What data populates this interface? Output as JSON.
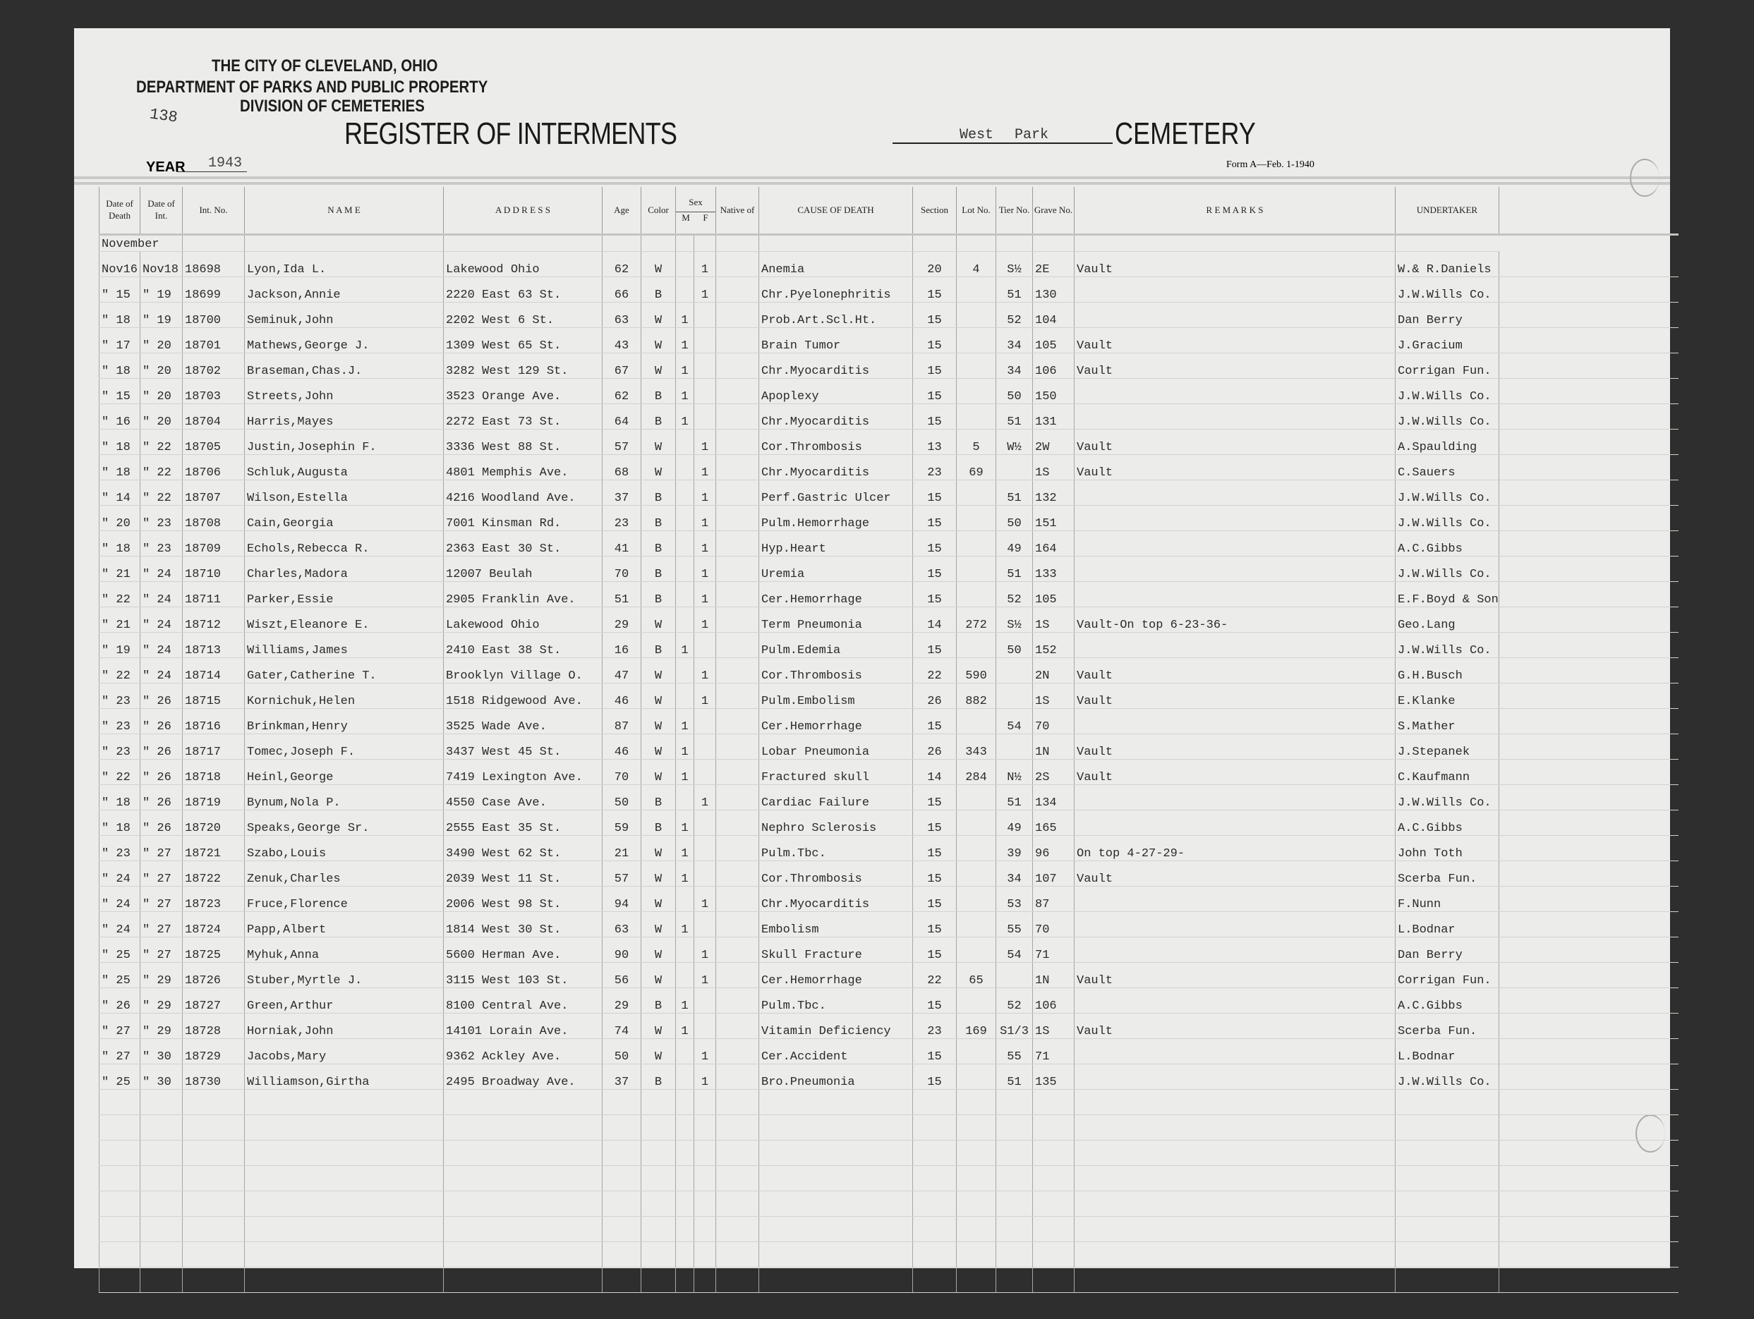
{
  "header": {
    "line1": "THE CITY OF CLEVELAND, OHIO",
    "line2": "DEPARTMENT OF PARKS AND PUBLIC PROPERTY",
    "line3": "DIVISION OF CEMETERIES",
    "page_number": "138",
    "register_title": "REGISTER OF INTERMENTS",
    "cemetery_name_1": "West",
    "cemetery_name_2": "Park",
    "cemetery_label": "CEMETERY",
    "year_label": "YEAR",
    "year": "1943",
    "form": "Form A—Feb. 1-1940"
  },
  "columns": [
    "Date of Death",
    "Date of Int.",
    "Int. No.",
    "N A M E",
    "A D D R E S S",
    "Age",
    "Color",
    "Sex",
    "Native of",
    "CAUSE OF DEATH",
    "Section",
    "Lot No.",
    "Tier No.",
    "Grave No.",
    "R E M A R K S",
    "UNDERTAKER",
    ""
  ],
  "sex_sub": [
    "M",
    "F"
  ],
  "month": "November",
  "rows": [
    [
      "Nov16",
      "Nov18",
      "18698",
      "Lyon,Ida L.",
      "Lakewood Ohio",
      "62",
      "W",
      "",
      "1",
      "",
      "Anemia",
      "20",
      "4",
      "S½",
      "2E",
      "Vault",
      "W.& R.Daniels"
    ],
    [
      "\" 15",
      "\" 19",
      "18699",
      "Jackson,Annie",
      "2220 East 63 St.",
      "66",
      "B",
      "",
      "1",
      "",
      "Chr.Pyelonephritis",
      "15",
      "",
      "51",
      "130",
      "",
      "J.W.Wills Co."
    ],
    [
      "\" 18",
      "\" 19",
      "18700",
      "Seminuk,John",
      "2202 West 6 St.",
      "63",
      "W",
      "1",
      "",
      "",
      "Prob.Art.Scl.Ht.",
      "15",
      "",
      "52",
      "104",
      "",
      "Dan Berry"
    ],
    [
      "\" 17",
      "\" 20",
      "18701",
      "Mathews,George J.",
      "1309 West 65 St.",
      "43",
      "W",
      "1",
      "",
      "",
      "Brain Tumor",
      "15",
      "",
      "34",
      "105",
      "Vault",
      "J.Gracium"
    ],
    [
      "\" 18",
      "\" 20",
      "18702",
      "Braseman,Chas.J.",
      "3282 West 129 St.",
      "67",
      "W",
      "1",
      "",
      "",
      "Chr.Myocarditis",
      "15",
      "",
      "34",
      "106",
      "Vault",
      "Corrigan Fun."
    ],
    [
      "\" 15",
      "\" 20",
      "18703",
      "Streets,John",
      "3523 Orange Ave.",
      "62",
      "B",
      "1",
      "",
      "",
      "Apoplexy",
      "15",
      "",
      "50",
      "150",
      "",
      "J.W.Wills Co."
    ],
    [
      "\" 16",
      "\" 20",
      "18704",
      "Harris,Mayes",
      "2272 East 73 St.",
      "64",
      "B",
      "1",
      "",
      "",
      "Chr.Myocarditis",
      "15",
      "",
      "51",
      "131",
      "",
      "J.W.Wills Co."
    ],
    [
      "\" 18",
      "\" 22",
      "18705",
      "Justin,Josephin F.",
      "3336 West 88 St.",
      "57",
      "W",
      "",
      "1",
      "",
      "Cor.Thrombosis",
      "13",
      "5",
      "W½",
      "2W",
      "Vault",
      "A.Spaulding"
    ],
    [
      "\" 18",
      "\" 22",
      "18706",
      "Schluk,Augusta",
      "4801 Memphis Ave.",
      "68",
      "W",
      "",
      "1",
      "",
      "Chr.Myocarditis",
      "23",
      "69",
      "",
      "1S",
      "Vault",
      "C.Sauers"
    ],
    [
      "\" 14",
      "\" 22",
      "18707",
      "Wilson,Estella",
      "4216 Woodland Ave.",
      "37",
      "B",
      "",
      "1",
      "",
      "Perf.Gastric Ulcer",
      "15",
      "",
      "51",
      "132",
      "",
      "J.W.Wills Co."
    ],
    [
      "\" 20",
      "\" 23",
      "18708",
      "Cain,Georgia",
      "7001 Kinsman Rd.",
      "23",
      "B",
      "",
      "1",
      "",
      "Pulm.Hemorrhage",
      "15",
      "",
      "50",
      "151",
      "",
      "J.W.Wills Co."
    ],
    [
      "\" 18",
      "\" 23",
      "18709",
      "Echols,Rebecca R.",
      "2363 East 30 St.",
      "41",
      "B",
      "",
      "1",
      "",
      "Hyp.Heart",
      "15",
      "",
      "49",
      "164",
      "",
      "A.C.Gibbs"
    ],
    [
      "\" 21",
      "\" 24",
      "18710",
      "Charles,Madora",
      "12007 Beulah",
      "70",
      "B",
      "",
      "1",
      "",
      "Uremia",
      "15",
      "",
      "51",
      "133",
      "",
      "J.W.Wills Co."
    ],
    [
      "\" 22",
      "\" 24",
      "18711",
      "Parker,Essie",
      "2905 Franklin Ave.",
      "51",
      "B",
      "",
      "1",
      "",
      "Cer.Hemorrhage",
      "15",
      "",
      "52",
      "105",
      "",
      "E.F.Boyd & Son"
    ],
    [
      "\" 21",
      "\" 24",
      "18712",
      "Wiszt,Eleanore E.",
      "Lakewood Ohio",
      "29",
      "W",
      "",
      "1",
      "",
      "Term Pneumonia",
      "14",
      "272",
      "S½",
      "1S",
      "Vault-On top 6-23-36-",
      "Geo.Lang"
    ],
    [
      "\" 19",
      "\" 24",
      "18713",
      "Williams,James",
      "2410 East 38 St.",
      "16",
      "B",
      "1",
      "",
      "",
      "Pulm.Edemia",
      "15",
      "",
      "50",
      "152",
      "",
      "J.W.Wills Co."
    ],
    [
      "\" 22",
      "\" 24",
      "18714",
      "Gater,Catherine T.",
      "Brooklyn Village O.",
      "47",
      "W",
      "",
      "1",
      "",
      "Cor.Thrombosis",
      "22",
      "590",
      "",
      "2N",
      "Vault",
      "G.H.Busch"
    ],
    [
      "\" 23",
      "\" 26",
      "18715",
      "Kornichuk,Helen",
      "1518 Ridgewood Ave.",
      "46",
      "W",
      "",
      "1",
      "",
      "Pulm.Embolism",
      "26",
      "882",
      "",
      "1S",
      "Vault",
      "E.Klanke"
    ],
    [
      "\" 23",
      "\" 26",
      "18716",
      "Brinkman,Henry",
      "3525 Wade Ave.",
      "87",
      "W",
      "1",
      "",
      "",
      "Cer.Hemorrhage",
      "15",
      "",
      "54",
      "70",
      "",
      "S.Mather"
    ],
    [
      "\" 23",
      "\" 26",
      "18717",
      "Tomec,Joseph F.",
      "3437 West 45 St.",
      "46",
      "W",
      "1",
      "",
      "",
      "Lobar Pneumonia",
      "26",
      "343",
      "",
      "1N",
      "Vault",
      "J.Stepanek"
    ],
    [
      "\" 22",
      "\" 26",
      "18718",
      "Heinl,George",
      "7419 Lexington Ave.",
      "70",
      "W",
      "1",
      "",
      "",
      "Fractured skull",
      "14",
      "284",
      "N½",
      "2S",
      "Vault",
      "C.Kaufmann"
    ],
    [
      "\" 18",
      "\" 26",
      "18719",
      "Bynum,Nola P.",
      "4550 Case Ave.",
      "50",
      "B",
      "",
      "1",
      "",
      "Cardiac Failure",
      "15",
      "",
      "51",
      "134",
      "",
      "J.W.Wills Co."
    ],
    [
      "\" 18",
      "\" 26",
      "18720",
      "Speaks,George Sr.",
      "2555 East 35 St.",
      "59",
      "B",
      "1",
      "",
      "",
      "Nephro Sclerosis",
      "15",
      "",
      "49",
      "165",
      "",
      "A.C.Gibbs"
    ],
    [
      "\" 23",
      "\" 27",
      "18721",
      "Szabo,Louis",
      "3490 West 62 St.",
      "21",
      "W",
      "1",
      "",
      "",
      "Pulm.Tbc.",
      "15",
      "",
      "39",
      "96",
      "On top 4-27-29-",
      "John Toth"
    ],
    [
      "\" 24",
      "\" 27",
      "18722",
      "Zenuk,Charles",
      "2039 West 11 St.",
      "57",
      "W",
      "1",
      "",
      "",
      "Cor.Thrombosis",
      "15",
      "",
      "34",
      "107",
      "Vault",
      "Scerba Fun."
    ],
    [
      "\" 24",
      "\" 27",
      "18723",
      "Fruce,Florence",
      "2006 West 98 St.",
      "94",
      "W",
      "",
      "1",
      "",
      "Chr.Myocarditis",
      "15",
      "",
      "53",
      "87",
      "",
      "F.Nunn"
    ],
    [
      "\" 24",
      "\" 27",
      "18724",
      "Papp,Albert",
      "1814 West 30 St.",
      "63",
      "W",
      "1",
      "",
      "",
      "Embolism",
      "15",
      "",
      "55",
      "70",
      "",
      "L.Bodnar"
    ],
    [
      "\" 25",
      "\" 27",
      "18725",
      "Myhuk,Anna",
      "5600 Herman Ave.",
      "90",
      "W",
      "",
      "1",
      "",
      "Skull Fracture",
      "15",
      "",
      "54",
      "71",
      "",
      "Dan Berry"
    ],
    [
      "\" 25",
      "\" 29",
      "18726",
      "Stuber,Myrtle J.",
      "3115 West 103 St.",
      "56",
      "W",
      "",
      "1",
      "",
      "Cer.Hemorrhage",
      "22",
      "65",
      "",
      "1N",
      "Vault",
      "Corrigan Fun."
    ],
    [
      "\" 26",
      "\" 29",
      "18727",
      "Green,Arthur",
      "8100 Central Ave.",
      "29",
      "B",
      "1",
      "",
      "",
      "Pulm.Tbc.",
      "15",
      "",
      "52",
      "106",
      "",
      "A.C.Gibbs"
    ],
    [
      "\" 27",
      "\" 29",
      "18728",
      "Horniak,John",
      "14101 Lorain Ave.",
      "74",
      "W",
      "1",
      "",
      "",
      "Vitamin Deficiency",
      "23",
      "169",
      "S1/3",
      "1S",
      "Vault",
      "Scerba Fun."
    ],
    [
      "\" 27",
      "\" 30",
      "18729",
      "Jacobs,Mary",
      "9362 Ackley Ave.",
      "50",
      "W",
      "",
      "1",
      "",
      "Cer.Accident",
      "15",
      "",
      "55",
      "71",
      "",
      "L.Bodnar"
    ],
    [
      "\" 25",
      "\" 30",
      "18730",
      "Williamson,Girtha",
      "2495 Broadway Ave.",
      "37",
      "B",
      "",
      "1",
      "",
      "Bro.Pneumonia",
      "15",
      "",
      "51",
      "135",
      "",
      "J.W.Wills Co."
    ]
  ]
}
